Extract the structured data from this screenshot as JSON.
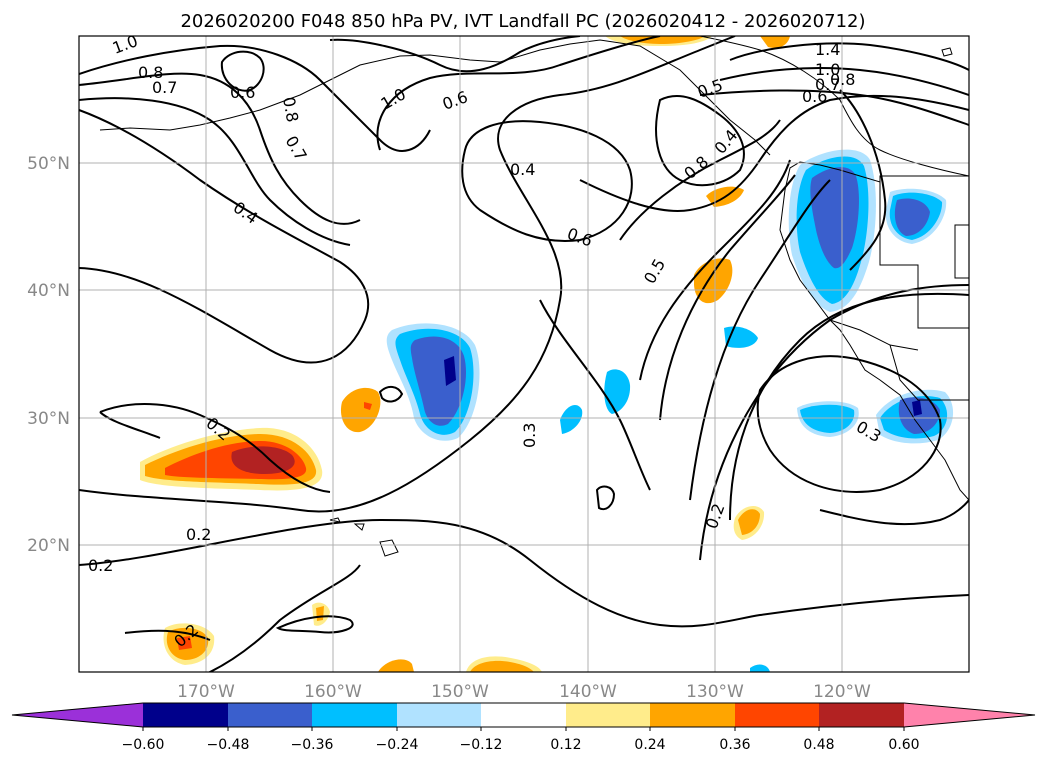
{
  "title": "2026020200 F048 850 hPa PV, IVT Landfall PC (2026020412 - 2026020712)",
  "latitude_labels": [
    "50°N",
    "40°N",
    "30°N",
    "20°N"
  ],
  "longitude_labels": [
    "170°W",
    "160°W",
    "150°W",
    "140°W",
    "130°W",
    "120°W"
  ],
  "contour_labels": [
    "1.0",
    "0.8",
    "0.7",
    "0.6",
    "0.8",
    "0.7",
    "1.0",
    "0.6",
    "0.4",
    "0.4",
    "0.6",
    "0.5",
    "0.8",
    "0.4",
    "0.5",
    "1.4",
    "1.0",
    "0.8",
    "0.7",
    "0.6",
    "0.2",
    "0.3",
    "0.3",
    "0.2",
    "0.2",
    "0.2",
    "0.2"
  ],
  "colorbar": {
    "ticks": [
      "−0.60",
      "−0.48",
      "−0.36",
      "−0.24",
      "−0.12",
      "0.12",
      "0.24",
      "0.36",
      "0.48",
      "0.60"
    ],
    "colors": [
      "#9b30d9",
      "#00008b",
      "#3a5fcd",
      "#00bfff",
      "#b0e2ff",
      "#ffffff",
      "#ffec8b",
      "#ffa500",
      "#ff4500",
      "#b22222",
      "#ff82ab"
    ]
  },
  "chart_data": {
    "type": "heatmap",
    "title": "2026020200 F048 850 hPa PV, IVT Landfall PC (2026020412 - 2026020712)",
    "fields": [
      "850 hPa PV (contours)",
      "IVT Landfall PC (shaded)"
    ],
    "x_axis": {
      "ticks": [
        "170°W",
        "160°W",
        "150°W",
        "140°W",
        "130°W",
        "120°W"
      ],
      "range_deg": [
        -180,
        -110
      ]
    },
    "y_axis": {
      "ticks": [
        "50°N",
        "40°N",
        "30°N",
        "20°N"
      ],
      "range_deg": [
        10,
        60
      ]
    },
    "grid": true,
    "colorbar": {
      "levels": [
        -0.6,
        -0.48,
        -0.36,
        -0.24,
        -0.12,
        0.12,
        0.24,
        0.36,
        0.48,
        0.6
      ],
      "extend": "both",
      "placement": "bottom"
    },
    "pv_contour_levels": [
      0.2,
      0.3,
      0.4,
      0.5,
      0.6,
      0.7,
      0.8,
      1.0,
      1.4
    ]
  }
}
